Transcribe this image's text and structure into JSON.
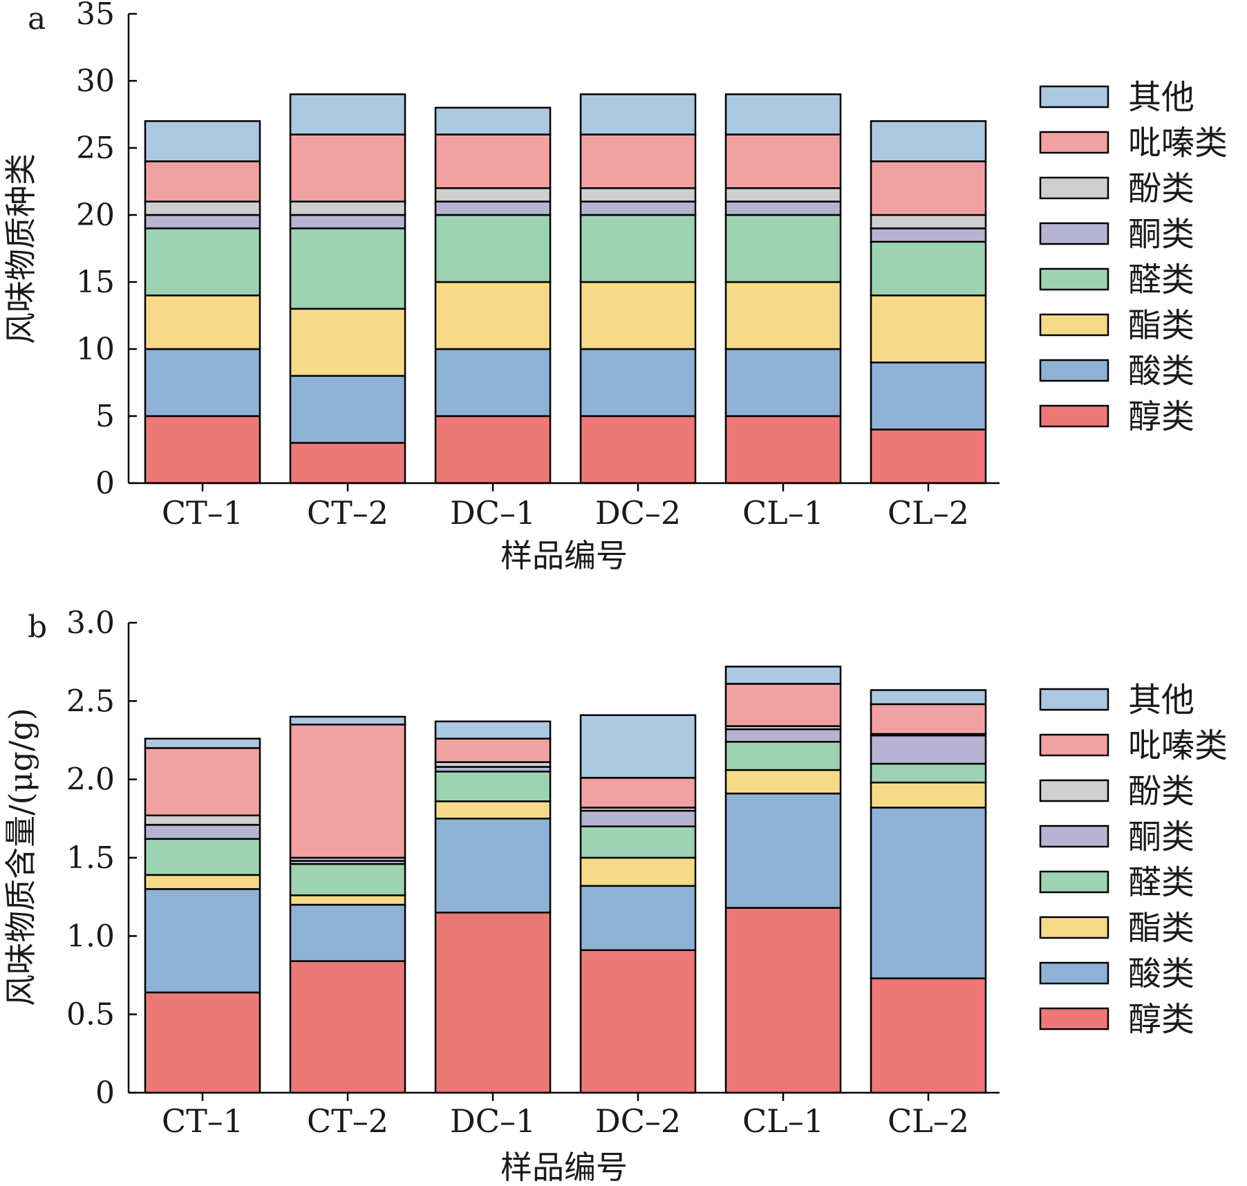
{
  "colors": {
    "醇类": "#ee7878",
    "酸类": "#8fb1d5",
    "酯类": "#f6da8a",
    "醛类": "#9ed3b1",
    "酮类": "#b7b3d3",
    "酚类": "#cfcfcf",
    "吡嗪类": "#f2a1a3",
    "其他": "#acc7e0"
  },
  "chart_data": [
    {
      "panel_label": "a",
      "type": "bar",
      "stacked": true,
      "categories": [
        "CT–1",
        "CT–2",
        "DC–1",
        "DC–2",
        "CL–1",
        "CL–2"
      ],
      "xlabel": "样品编号",
      "ylabel": "风味物质种类",
      "ylim": [
        0,
        35
      ],
      "yticks": [
        0,
        5,
        10,
        15,
        20,
        25,
        30,
        35
      ],
      "ytick_labels": [
        "0",
        "5",
        "10",
        "15",
        "20",
        "25",
        "30",
        "35"
      ],
      "legend_position": "right",
      "legend_order": [
        "其他",
        "吡嗪类",
        "酚类",
        "酮类",
        "醛类",
        "酯类",
        "酸类",
        "醇类"
      ],
      "series": [
        {
          "name": "醇类",
          "values": [
            5,
            3,
            5,
            5,
            5,
            4
          ]
        },
        {
          "name": "酸类",
          "values": [
            5,
            5,
            5,
            5,
            5,
            5
          ]
        },
        {
          "name": "酯类",
          "values": [
            4,
            5,
            5,
            5,
            5,
            5
          ]
        },
        {
          "name": "醛类",
          "values": [
            5,
            6,
            5,
            5,
            5,
            4
          ]
        },
        {
          "name": "酮类",
          "values": [
            1,
            1,
            1,
            1,
            1,
            1
          ]
        },
        {
          "name": "酚类",
          "values": [
            1,
            1,
            1,
            1,
            1,
            1
          ]
        },
        {
          "name": "吡嗪类",
          "values": [
            3,
            5,
            4,
            4,
            4,
            4
          ]
        },
        {
          "name": "其他",
          "values": [
            3,
            3,
            2,
            3,
            3,
            3
          ]
        }
      ]
    },
    {
      "panel_label": "b",
      "type": "bar",
      "stacked": true,
      "categories": [
        "CT–1",
        "CT–2",
        "DC–1",
        "DC–2",
        "CL–1",
        "CL–2"
      ],
      "xlabel": "样品编号",
      "ylabel": "风味物质含量/(μg/g)",
      "ylim": [
        0,
        3.0
      ],
      "yticks": [
        0,
        0.5,
        1.0,
        1.5,
        2.0,
        2.5,
        3.0
      ],
      "ytick_labels": [
        "0",
        "0.5",
        "1.0",
        "1.5",
        "2.0",
        "2.5",
        "3.0"
      ],
      "legend_position": "right",
      "legend_order": [
        "其他",
        "吡嗪类",
        "酚类",
        "酮类",
        "醛类",
        "酯类",
        "酸类",
        "醇类"
      ],
      "series": [
        {
          "name": "醇类",
          "values": [
            0.64,
            0.84,
            1.15,
            0.91,
            1.18,
            0.73
          ]
        },
        {
          "name": "酸类",
          "values": [
            0.66,
            0.36,
            0.6,
            0.41,
            0.73,
            1.09
          ]
        },
        {
          "name": "酯类",
          "values": [
            0.09,
            0.06,
            0.11,
            0.18,
            0.15,
            0.16
          ]
        },
        {
          "name": "醛类",
          "values": [
            0.23,
            0.2,
            0.19,
            0.2,
            0.18,
            0.12
          ]
        },
        {
          "name": "酮类",
          "values": [
            0.09,
            0.02,
            0.03,
            0.1,
            0.08,
            0.18
          ]
        },
        {
          "name": "酚类",
          "values": [
            0.06,
            0.02,
            0.03,
            0.02,
            0.02,
            0.01
          ]
        },
        {
          "name": "吡嗪类",
          "values": [
            0.43,
            0.85,
            0.15,
            0.19,
            0.27,
            0.19
          ]
        },
        {
          "name": "其他",
          "values": [
            0.06,
            0.05,
            0.11,
            0.4,
            0.11,
            0.09
          ]
        }
      ]
    }
  ]
}
